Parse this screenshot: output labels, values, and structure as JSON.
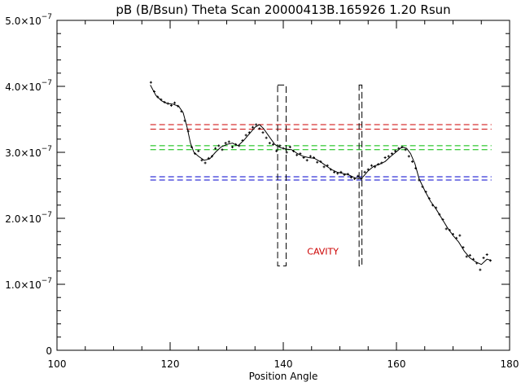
{
  "chart_data": {
    "type": "scatter",
    "title": "pB (B/Bsun) Theta Scan 20000413B.165926 1.20 Rsun",
    "xlabel": "Position Angle",
    "ylabel": "",
    "xlim": [
      100,
      180
    ],
    "ylim": [
      0,
      5e-07
    ],
    "x_ticks": [
      {
        "v": 100,
        "label": "100"
      },
      {
        "v": 120,
        "label": "120"
      },
      {
        "v": 140,
        "label": "140"
      },
      {
        "v": 160,
        "label": "160"
      },
      {
        "v": 180,
        "label": "180"
      }
    ],
    "y_ticks": [
      {
        "v": 0,
        "label": "0"
      },
      {
        "v": 1e-07,
        "mant": "1.0×10",
        "exp": "−7"
      },
      {
        "v": 2e-07,
        "mant": "2.0×10",
        "exp": "−7"
      },
      {
        "v": 3e-07,
        "mant": "3.0×10",
        "exp": "−7"
      },
      {
        "v": 4e-07,
        "mant": "4.0×10",
        "exp": "−7"
      },
      {
        "v": 5e-07,
        "mant": "5.0×10",
        "exp": "−7"
      }
    ],
    "grid": false,
    "series": [
      {
        "style": "points",
        "x": [
          116.6,
          117.2,
          117.8,
          118.4,
          119.0,
          119.6,
          120.2,
          120.8,
          121.4,
          122.0,
          122.6,
          123.2,
          123.8,
          124.4,
          125.0,
          125.6,
          126.2,
          126.8,
          127.4,
          128.0,
          128.6,
          129.2,
          129.8,
          130.4,
          131.0,
          131.6,
          132.2,
          132.8,
          133.4,
          134.0,
          134.6,
          135.2,
          135.8,
          136.4,
          137.0,
          137.6,
          138.2,
          138.8,
          139.4,
          140.0,
          140.6,
          141.2,
          141.8,
          142.4,
          143.0,
          143.6,
          144.2,
          144.8,
          145.4,
          146.0,
          146.6,
          147.2,
          147.8,
          148.4,
          149.0,
          149.6,
          150.2,
          150.8,
          151.4,
          152.0,
          152.6,
          153.2,
          153.8,
          154.4,
          155.0,
          155.6,
          156.2,
          156.8,
          157.4,
          158.0,
          158.6,
          159.2,
          159.8,
          160.4,
          161.0,
          161.6,
          162.2,
          162.8,
          163.4,
          164.0,
          164.6,
          165.2,
          165.8,
          166.4,
          167.0,
          167.6,
          168.2,
          168.8,
          169.4,
          170.0,
          170.6,
          171.2,
          171.8,
          172.4,
          173.0,
          173.6,
          174.2,
          174.8,
          175.4,
          176.0,
          176.6
        ],
        "y": [
          4.06e-07,
          3.92e-07,
          3.84e-07,
          3.8e-07,
          3.76e-07,
          3.74e-07,
          3.71e-07,
          3.75e-07,
          3.7e-07,
          3.62e-07,
          3.48e-07,
          3.32e-07,
          3.08e-07,
          2.98e-07,
          3.02e-07,
          2.88e-07,
          2.84e-07,
          2.91e-07,
          2.94e-07,
          3.06e-07,
          3.1e-07,
          3.04e-07,
          3.14e-07,
          3.16e-07,
          3.08e-07,
          3.12e-07,
          3.1e-07,
          3.18e-07,
          3.26e-07,
          3.3e-07,
          3.38e-07,
          3.42e-07,
          3.36e-07,
          3.3e-07,
          3.22e-07,
          3.14e-07,
          3.12e-07,
          3.02e-07,
          3.1e-07,
          3.06e-07,
          3e-07,
          3.08e-07,
          3.02e-07,
          2.96e-07,
          2.98e-07,
          2.92e-07,
          2.88e-07,
          2.94e-07,
          2.92e-07,
          2.85e-07,
          2.86e-07,
          2.78e-07,
          2.8e-07,
          2.74e-07,
          2.7e-07,
          2.68e-07,
          2.7e-07,
          2.66e-07,
          2.67e-07,
          2.62e-07,
          2.6e-07,
          2.64e-07,
          2.6e-07,
          2.7e-07,
          2.74e-07,
          2.8e-07,
          2.78e-07,
          2.82e-07,
          2.84e-07,
          2.92e-07,
          2.94e-07,
          2.98e-07,
          3.02e-07,
          3.06e-07,
          3.08e-07,
          3.04e-07,
          2.94e-07,
          2.86e-07,
          2.76e-07,
          2.58e-07,
          2.48e-07,
          2.4e-07,
          2.3e-07,
          2.2e-07,
          2.16e-07,
          2.06e-07,
          1.98e-07,
          1.84e-07,
          1.82e-07,
          1.76e-07,
          1.7e-07,
          1.74e-07,
          1.56e-07,
          1.42e-07,
          1.44e-07,
          1.38e-07,
          1.32e-07,
          1.22e-07,
          1.4e-07,
          1.45e-07,
          1.36e-07
        ]
      },
      {
        "style": "line",
        "color": "#000000",
        "x": [
          116.5,
          117.5,
          118.5,
          119.5,
          120.5,
          121.5,
          122.3,
          123.0,
          123.6,
          124.2,
          125.0,
          126.0,
          127.0,
          128.0,
          129.0,
          130.0,
          131.0,
          132.0,
          133.0,
          134.0,
          135.0,
          135.8,
          136.5,
          137.5,
          138.5,
          139.5,
          140.5,
          141.5,
          142.5,
          143.5,
          144.5,
          145.5,
          146.5,
          147.5,
          148.5,
          149.5,
          150.5,
          151.5,
          152.5,
          153.3,
          154.0,
          155.0,
          156.0,
          157.0,
          158.0,
          159.0,
          160.0,
          161.0,
          161.8,
          162.5,
          163.3,
          164.0,
          165.0,
          166.0,
          167.0,
          168.0,
          169.0,
          170.0,
          171.0,
          172.0,
          173.0,
          174.0,
          175.0,
          176.0,
          176.8
        ],
        "y": [
          4.02e-07,
          3.86e-07,
          3.78e-07,
          3.74e-07,
          3.73e-07,
          3.7e-07,
          3.6e-07,
          3.38e-07,
          3.14e-07,
          3e-07,
          2.94e-07,
          2.88e-07,
          2.9e-07,
          3e-07,
          3.08e-07,
          3.12e-07,
          3.14e-07,
          3.1e-07,
          3.18e-07,
          3.28e-07,
          3.38e-07,
          3.42e-07,
          3.36e-07,
          3.24e-07,
          3.12e-07,
          3.07e-07,
          3.05e-07,
          3.04e-07,
          2.98e-07,
          2.94e-07,
          2.92e-07,
          2.91e-07,
          2.86e-07,
          2.8e-07,
          2.74e-07,
          2.7e-07,
          2.68e-07,
          2.66e-07,
          2.62e-07,
          2.6e-07,
          2.62e-07,
          2.72e-07,
          2.79e-07,
          2.82e-07,
          2.86e-07,
          2.94e-07,
          3.01e-07,
          3.08e-07,
          3.06e-07,
          2.98e-07,
          2.82e-07,
          2.6e-07,
          2.42e-07,
          2.26e-07,
          2.14e-07,
          2e-07,
          1.86e-07,
          1.74e-07,
          1.64e-07,
          1.5e-07,
          1.4e-07,
          1.34e-07,
          1.3e-07,
          1.38e-07,
          1.36e-07
        ]
      }
    ],
    "hlines": [
      {
        "y": 3.42e-07,
        "color": "#cc0000",
        "x0": 116.5,
        "x1": 176.8
      },
      {
        "y": 3.35e-07,
        "color": "#cc0000",
        "x0": 116.5,
        "x1": 176.8
      },
      {
        "y": 3.1e-07,
        "color": "#00bb00",
        "x0": 116.5,
        "x1": 176.8
      },
      {
        "y": 3.04e-07,
        "color": "#00bb00",
        "x0": 116.5,
        "x1": 176.8
      },
      {
        "y": 2.63e-07,
        "color": "#0000cc",
        "x0": 116.5,
        "x1": 176.8
      },
      {
        "y": 2.58e-07,
        "color": "#0000cc",
        "x0": 116.5,
        "x1": 176.8
      }
    ],
    "boxes": [
      {
        "x0": 139.0,
        "x1": 140.5,
        "y0": 1.28e-07,
        "y1": 4.02e-07,
        "color": "#000000"
      },
      {
        "x0": 153.4,
        "x1": 153.9,
        "y0": 1.28e-07,
        "y1": 4.02e-07,
        "color": "#000000"
      }
    ],
    "annotations": [
      {
        "text": "CAVITY",
        "x": 147.0,
        "y": 1.45e-07,
        "color": "#cc0000"
      }
    ]
  }
}
